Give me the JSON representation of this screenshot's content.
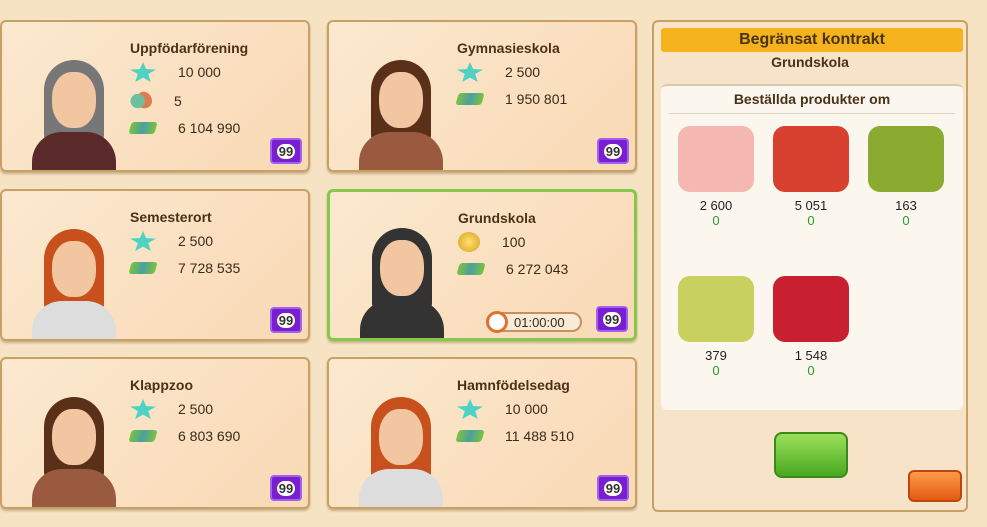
{
  "cards": [
    {
      "name": "Uppfödarförening",
      "stats": [
        {
          "icon": "star-icon",
          "value": "10 000"
        },
        {
          "icon": "animals-icon",
          "value": "5"
        },
        {
          "icon": "cash-icon",
          "value": "6 104 990"
        }
      ],
      "level": "99",
      "hair": "#777",
      "shirt": "#5a2a2a"
    },
    {
      "name": "Gymnasieskola",
      "stats": [
        {
          "icon": "star-icon",
          "value": "2 500"
        },
        {
          "icon": "cash-icon",
          "value": "1 950 801"
        }
      ],
      "level": "99",
      "hair": "#5a3018",
      "shirt": "#9a5a40"
    },
    {
      "name": "Semesterort",
      "stats": [
        {
          "icon": "star-icon",
          "value": "2 500"
        },
        {
          "icon": "cash-icon",
          "value": "7 728 535"
        }
      ],
      "level": "99",
      "hair": "#c8501c",
      "shirt": "#ddd"
    },
    {
      "name": "Grundskola",
      "stats": [
        {
          "icon": "coin-icon",
          "value": "100"
        },
        {
          "icon": "cash-icon",
          "value": "6 272 043"
        }
      ],
      "level": "99",
      "timer": "01:00:00",
      "selected": true,
      "hair": "#333",
      "shirt": "#333"
    },
    {
      "name": "Klappzoo",
      "stats": [
        {
          "icon": "star-icon",
          "value": "2 500"
        },
        {
          "icon": "cash-icon",
          "value": "6 803 690"
        }
      ],
      "level": "99",
      "hair": "#5a3018",
      "shirt": "#9a5a40"
    },
    {
      "name": "Hamnfödelsedag",
      "stats": [
        {
          "icon": "star-icon",
          "value": "10 000"
        },
        {
          "icon": "cash-icon",
          "value": "11 488 510"
        }
      ],
      "level": "99",
      "hair": "#c8501c",
      "shirt": "#ddd"
    }
  ],
  "panel": {
    "title": "Begränsat kontrakt",
    "subtitle": "Grundskola",
    "section": "Beställda produkter om",
    "products": [
      {
        "name": "pig",
        "quantity": "2 600",
        "delivered": "0",
        "color": "#f5b8b0"
      },
      {
        "name": "apples",
        "quantity": "5 051",
        "delivered": "0",
        "color": "#d84030"
      },
      {
        "name": "olives",
        "quantity": "163",
        "delivered": "0",
        "color": "#8aaa30"
      },
      {
        "name": "olive-oil",
        "quantity": "379",
        "delivered": "0",
        "color": "#c8d060"
      },
      {
        "name": "cherry-jam",
        "quantity": "1 548",
        "delivered": "0",
        "color": "#c82030"
      }
    ]
  }
}
